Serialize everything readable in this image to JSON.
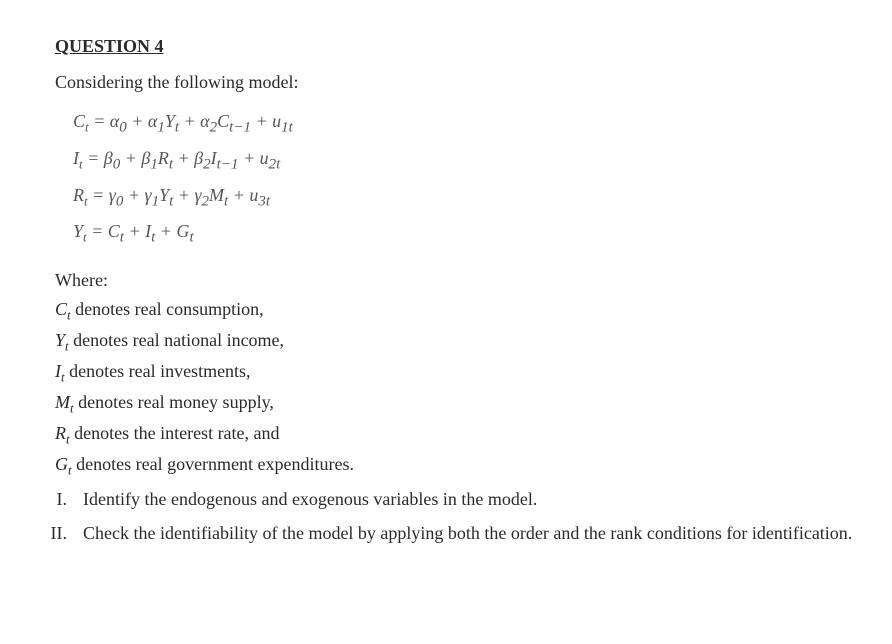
{
  "heading": "QUESTION 4",
  "intro": "Considering the following model:",
  "equations": {
    "eq1": {
      "lhs_base": "C",
      "lhs_sub": "t",
      "rhs_html": "α<sub>0</sub> + α<sub>1</sub>Y<sub>t</sub> + α<sub>2</sub>C<sub>t−1</sub> + u<sub>1t</sub>"
    },
    "eq2": {
      "lhs_base": "I",
      "lhs_sub": "t",
      "rhs_html": "β<sub>0</sub> + β<sub>1</sub>R<sub>t</sub> + β<sub>2</sub>I<sub>t−1</sub> + u<sub>2t</sub>"
    },
    "eq3": {
      "lhs_base": "R",
      "lhs_sub": "t",
      "rhs_html": "γ<sub>0</sub> + γ<sub>1</sub>Y<sub>t</sub> + γ<sub>2</sub>M<sub>t</sub> + u<sub>3t</sub>"
    },
    "eq4": {
      "lhs_base": "Y",
      "lhs_sub": "t",
      "rhs_html": "C<sub>t</sub> + I<sub>t</sub> + G<sub>t</sub>"
    }
  },
  "where_label": "Where:",
  "definitions": [
    {
      "var_base": "C",
      "var_sub": "t",
      "text": " denotes real consumption,"
    },
    {
      "var_base": "Y",
      "var_sub": "t",
      "text": " denotes real national income,"
    },
    {
      "var_base": "I",
      "var_sub": "t",
      "text": " denotes real investments,"
    },
    {
      "var_base": "M",
      "var_sub": "t",
      "text": " denotes real money supply,"
    },
    {
      "var_base": "R",
      "var_sub": "t",
      "text": " denotes the interest rate, and"
    },
    {
      "var_base": "G",
      "var_sub": "t",
      "text": " denotes real government expenditures."
    }
  ],
  "tasks": [
    {
      "numeral": "I.",
      "text": "Identify the endogenous and exogenous variables in the model."
    },
    {
      "numeral": "II.",
      "text": "Check the identifiability of the model by applying both the order and the rank conditions for identification."
    }
  ],
  "style": {
    "background_color": "#ffffff",
    "text_color": "#2a2a2a",
    "equation_color": "#555560",
    "body_fontsize_pt": 13,
    "font_family": "Times New Roman"
  }
}
